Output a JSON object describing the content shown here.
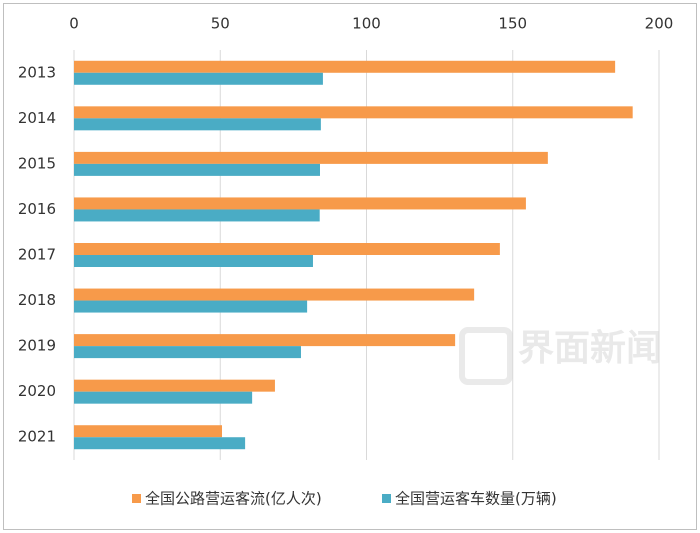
{
  "chart_data": {
    "type": "hbar",
    "categories": [
      "2013",
      "2014",
      "2015",
      "2016",
      "2017",
      "2018",
      "2019",
      "2020",
      "2021"
    ],
    "series": [
      {
        "name": "全国公路营运客流(亿人次)",
        "color": "#f79a4a",
        "values": [
          185,
          191,
          162,
          154.5,
          145.6,
          136.8,
          130.3,
          68.7,
          50.6
        ]
      },
      {
        "name": "全国营运客车数量(万辆)",
        "color": "#4aacc5",
        "values": [
          85.1,
          84.4,
          84.1,
          84,
          81.7,
          79.7,
          77.6,
          60.9,
          58.5
        ]
      }
    ],
    "xlim": [
      0,
      200
    ],
    "xticks": [
      0,
      50,
      100,
      150,
      200
    ],
    "grid": true,
    "watermark": "界面新闻"
  }
}
